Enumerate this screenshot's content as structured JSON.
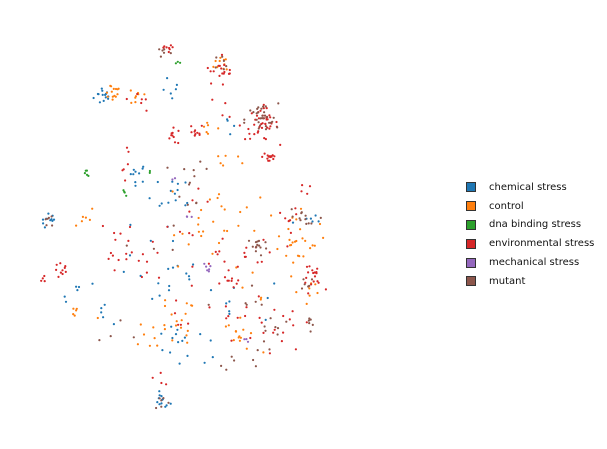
{
  "chart_data": {
    "type": "scatter",
    "title": "",
    "xlabel": "",
    "ylabel": "",
    "axes_visible": false,
    "grid": false,
    "legend_position": "right",
    "xlim": [
      0,
      100
    ],
    "ylim": [
      0,
      100
    ],
    "series": [
      {
        "name": "chemical stress",
        "color": "#1f77b4",
        "clusters": [
          {
            "x": 19,
            "y": 82,
            "n": 14,
            "spread": 1.2
          },
          {
            "x": 27,
            "y": 63,
            "n": 10,
            "spread": 1.2
          },
          {
            "x": 6,
            "y": 51,
            "n": 10,
            "spread": 1.0
          },
          {
            "x": 35,
            "y": 57,
            "n": 8,
            "spread": 2.5
          },
          {
            "x": 13,
            "y": 33,
            "n": 6,
            "spread": 2.0
          },
          {
            "x": 20,
            "y": 30,
            "n": 5,
            "spread": 2.0
          },
          {
            "x": 30,
            "y": 35,
            "n": 6,
            "spread": 3.0
          },
          {
            "x": 35,
            "y": 22,
            "n": 10,
            "spread": 2.0
          },
          {
            "x": 33,
            "y": 7,
            "n": 12,
            "spread": 1.0
          },
          {
            "x": 36,
            "y": 38,
            "n": 8,
            "spread": 3.0
          },
          {
            "x": 37,
            "y": 57,
            "n": 6,
            "spread": 2.0
          },
          {
            "x": 36,
            "y": 83,
            "n": 6,
            "spread": 1.5
          },
          {
            "x": 42,
            "y": 20,
            "n": 6,
            "spread": 2.5
          },
          {
            "x": 50,
            "y": 75,
            "n": 4,
            "spread": 2.0
          },
          {
            "x": 30,
            "y": 47,
            "n": 5,
            "spread": 3.0
          },
          {
            "x": 67,
            "y": 52,
            "n": 6,
            "spread": 3.0
          },
          {
            "x": 54,
            "y": 30,
            "n": 5,
            "spread": 4.0
          },
          {
            "x": 48,
            "y": 32,
            "n": 4,
            "spread": 3.0
          }
        ]
      },
      {
        "name": "control",
        "color": "#ff7f0e",
        "clusters": [
          {
            "x": 21,
            "y": 83,
            "n": 14,
            "spread": 1.2
          },
          {
            "x": 27,
            "y": 82,
            "n": 8,
            "spread": 1.5
          },
          {
            "x": 48,
            "y": 90,
            "n": 10,
            "spread": 1.2
          },
          {
            "x": 14,
            "y": 52,
            "n": 6,
            "spread": 1.5
          },
          {
            "x": 44,
            "y": 74,
            "n": 6,
            "spread": 1.5
          },
          {
            "x": 46,
            "y": 55,
            "n": 10,
            "spread": 3.0
          },
          {
            "x": 40,
            "y": 47,
            "n": 10,
            "spread": 3.0
          },
          {
            "x": 52,
            "y": 23,
            "n": 12,
            "spread": 2.0
          },
          {
            "x": 31,
            "y": 23,
            "n": 8,
            "spread": 2.5
          },
          {
            "x": 34,
            "y": 28,
            "n": 8,
            "spread": 3.0
          },
          {
            "x": 12,
            "y": 28,
            "n": 6,
            "spread": 2.0
          },
          {
            "x": 66,
            "y": 49,
            "n": 8,
            "spread": 3.0
          },
          {
            "x": 67,
            "y": 47,
            "n": 8,
            "spread": 2.0
          },
          {
            "x": 66,
            "y": 46,
            "n": 10,
            "spread": 3.5
          },
          {
            "x": 54,
            "y": 50,
            "n": 8,
            "spread": 3.0
          },
          {
            "x": 68,
            "y": 34,
            "n": 8,
            "spread": 2.5
          },
          {
            "x": 49,
            "y": 66,
            "n": 6,
            "spread": 2.5
          },
          {
            "x": 39,
            "y": 28,
            "n": 8,
            "spread": 3.0
          },
          {
            "x": 52,
            "y": 32,
            "n": 6,
            "spread": 3.0
          }
        ]
      },
      {
        "name": "dna binding stress",
        "color": "#2ca02c",
        "clusters": [
          {
            "x": 15,
            "y": 63,
            "n": 5,
            "spread": 0.4
          },
          {
            "x": 24,
            "y": 58,
            "n": 4,
            "spread": 0.4
          },
          {
            "x": 37,
            "y": 90,
            "n": 3,
            "spread": 0.4
          },
          {
            "x": 30,
            "y": 63,
            "n": 2,
            "spread": 0.4
          }
        ]
      },
      {
        "name": "environmental stress",
        "color": "#d62728",
        "clusters": [
          {
            "x": 57,
            "y": 75,
            "n": 40,
            "spread": 2.0
          },
          {
            "x": 59,
            "y": 67,
            "n": 14,
            "spread": 0.9
          },
          {
            "x": 48,
            "y": 88,
            "n": 12,
            "spread": 1.2
          },
          {
            "x": 36,
            "y": 72,
            "n": 10,
            "spread": 1.0
          },
          {
            "x": 41,
            "y": 73,
            "n": 10,
            "spread": 1.0
          },
          {
            "x": 34,
            "y": 93,
            "n": 8,
            "spread": 1.0
          },
          {
            "x": 9,
            "y": 39,
            "n": 10,
            "spread": 1.0
          },
          {
            "x": 69,
            "y": 38,
            "n": 8,
            "spread": 1.0
          },
          {
            "x": 50,
            "y": 37,
            "n": 10,
            "spread": 1.2
          },
          {
            "x": 22,
            "y": 40,
            "n": 8,
            "spread": 2.5
          },
          {
            "x": 30,
            "y": 40,
            "n": 8,
            "spread": 2.5
          },
          {
            "x": 47,
            "y": 43,
            "n": 8,
            "spread": 3.0
          },
          {
            "x": 56,
            "y": 43,
            "n": 10,
            "spread": 3.0
          },
          {
            "x": 53,
            "y": 27,
            "n": 10,
            "spread": 3.0
          },
          {
            "x": 60,
            "y": 28,
            "n": 8,
            "spread": 3.0
          },
          {
            "x": 33,
            "y": 13,
            "n": 4,
            "spread": 1.0
          },
          {
            "x": 40,
            "y": 52,
            "n": 8,
            "spread": 3.0
          },
          {
            "x": 5,
            "y": 37,
            "n": 4,
            "spread": 1.0
          },
          {
            "x": 64,
            "y": 25,
            "n": 6,
            "spread": 3.0
          },
          {
            "x": 68,
            "y": 57,
            "n": 6,
            "spread": 2.0
          },
          {
            "x": 21,
            "y": 48,
            "n": 6,
            "spread": 3.0
          },
          {
            "x": 24,
            "y": 66,
            "n": 6,
            "spread": 2.0
          },
          {
            "x": 46,
            "y": 87,
            "n": 6,
            "spread": 1.5
          },
          {
            "x": 28,
            "y": 81,
            "n": 6,
            "spread": 1.5
          },
          {
            "x": 47,
            "y": 78,
            "n": 4,
            "spread": 2.0
          },
          {
            "x": 39,
            "y": 25,
            "n": 6,
            "spread": 3.0
          },
          {
            "x": 60,
            "y": 50,
            "n": 6,
            "spread": 3.0
          },
          {
            "x": 69,
            "y": 37,
            "n": 6,
            "spread": 2.0
          },
          {
            "x": 70,
            "y": 36,
            "n": 4,
            "spread": 1.5
          }
        ]
      },
      {
        "name": "mechanical stress",
        "color": "#9467bd",
        "clusters": [
          {
            "x": 44,
            "y": 40,
            "n": 6,
            "spread": 0.5
          },
          {
            "x": 39,
            "y": 52,
            "n": 3,
            "spread": 0.5
          },
          {
            "x": 53,
            "y": 22,
            "n": 3,
            "spread": 0.5
          },
          {
            "x": 36,
            "y": 62,
            "n": 2,
            "spread": 0.5
          }
        ]
      },
      {
        "name": "mutant",
        "color": "#8c564b",
        "clusters": [
          {
            "x": 57,
            "y": 76,
            "n": 30,
            "spread": 2.0
          },
          {
            "x": 56,
            "y": 45,
            "n": 14,
            "spread": 1.2
          },
          {
            "x": 67,
            "y": 52,
            "n": 12,
            "spread": 2.5
          },
          {
            "x": 6,
            "y": 51,
            "n": 6,
            "spread": 1.0
          },
          {
            "x": 48,
            "y": 90,
            "n": 6,
            "spread": 1.2
          },
          {
            "x": 33,
            "y": 93,
            "n": 6,
            "spread": 1.0
          },
          {
            "x": 33,
            "y": 7,
            "n": 6,
            "spread": 1.0
          },
          {
            "x": 68,
            "y": 36,
            "n": 6,
            "spread": 1.0
          },
          {
            "x": 69,
            "y": 27,
            "n": 6,
            "spread": 1.0
          },
          {
            "x": 60,
            "y": 25,
            "n": 8,
            "spread": 2.0
          },
          {
            "x": 40,
            "y": 55,
            "n": 6,
            "spread": 3.0
          },
          {
            "x": 40,
            "y": 64,
            "n": 6,
            "spread": 3.0
          },
          {
            "x": 53,
            "y": 30,
            "n": 6,
            "spread": 3.0
          },
          {
            "x": 31,
            "y": 47,
            "n": 4,
            "spread": 3.0
          },
          {
            "x": 48,
            "y": 17,
            "n": 4,
            "spread": 2.0
          },
          {
            "x": 57,
            "y": 18,
            "n": 4,
            "spread": 2.0
          },
          {
            "x": 23,
            "y": 27,
            "n": 4,
            "spread": 3.0
          }
        ]
      }
    ]
  }
}
